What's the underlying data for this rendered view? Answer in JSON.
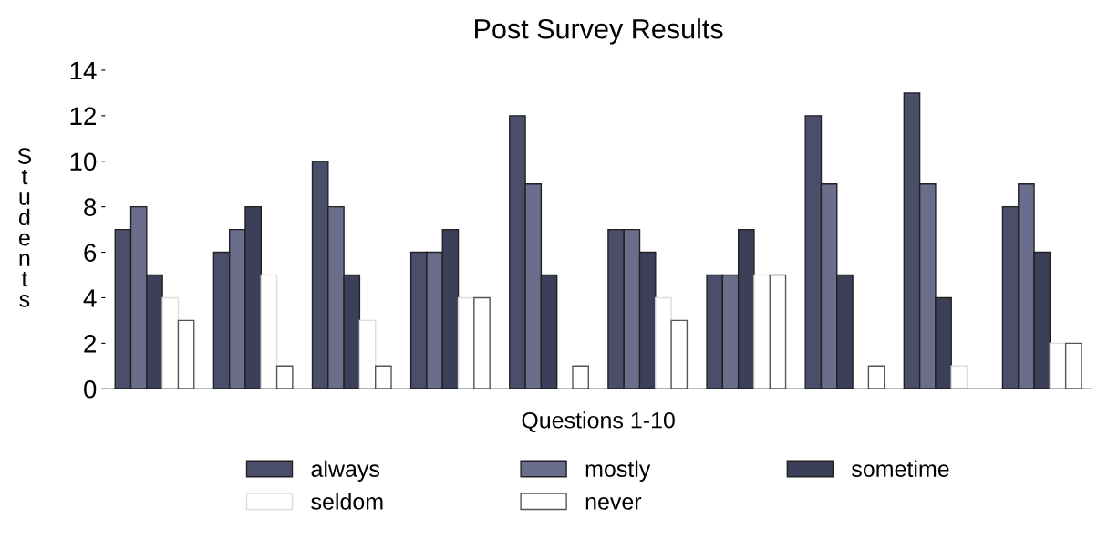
{
  "chart_data": {
    "type": "bar",
    "title": "Post Survey Results",
    "xlabel": "Questions 1-10",
    "ylabel": "Students",
    "categories": [
      null,
      null,
      null,
      null,
      null,
      null,
      null,
      null,
      null,
      null
    ],
    "series": [
      {
        "name": "always",
        "color": "#4a4e6a",
        "values": [
          7,
          6,
          10,
          6,
          12,
          7,
          5,
          12,
          13,
          8
        ]
      },
      {
        "name": "mostly",
        "color": "#6a6e8c",
        "values": [
          8,
          7,
          8,
          6,
          9,
          7,
          5,
          9,
          9,
          9
        ]
      },
      {
        "name": "sometime",
        "color": "#3c3f58",
        "values": [
          5,
          8,
          5,
          7,
          5,
          6,
          7,
          5,
          4,
          6
        ]
      },
      {
        "name": "seldom",
        "color": "#ffffff",
        "values": [
          4,
          5,
          3,
          4,
          0,
          4,
          5,
          0,
          1,
          2
        ]
      },
      {
        "name": "never",
        "color": "#ffffff",
        "values": [
          3,
          1,
          1,
          4,
          1,
          3,
          5,
          1,
          0,
          2
        ]
      }
    ],
    "ylim": [
      0,
      14
    ],
    "yticks": [
      0,
      2,
      4,
      6,
      8,
      10,
      12,
      14
    ],
    "tick_labels": "y",
    "grid": false,
    "legend": "bottom"
  }
}
